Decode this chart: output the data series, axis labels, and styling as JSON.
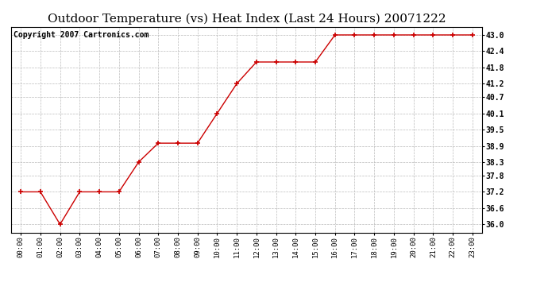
{
  "title": "Outdoor Temperature (vs) Heat Index (Last 24 Hours) 20071222",
  "copyright_text": "Copyright 2007 Cartronics.com",
  "x_labels": [
    "00:00",
    "01:00",
    "02:00",
    "03:00",
    "04:00",
    "05:00",
    "06:00",
    "07:00",
    "08:00",
    "09:00",
    "10:00",
    "11:00",
    "12:00",
    "13:00",
    "14:00",
    "15:00",
    "16:00",
    "17:00",
    "18:00",
    "19:00",
    "20:00",
    "21:00",
    "22:00",
    "23:00"
  ],
  "y_values": [
    37.2,
    37.2,
    36.0,
    37.2,
    37.2,
    37.2,
    38.3,
    39.0,
    39.0,
    39.0,
    40.1,
    41.2,
    42.0,
    42.0,
    42.0,
    42.0,
    43.0,
    43.0,
    43.0,
    43.0,
    43.0,
    43.0,
    43.0,
    43.0
  ],
  "y_ticks": [
    36.0,
    36.6,
    37.2,
    37.8,
    38.3,
    38.9,
    39.5,
    40.1,
    40.7,
    41.2,
    41.8,
    42.4,
    43.0
  ],
  "y_min": 35.7,
  "y_max": 43.3,
  "line_color": "#cc0000",
  "marker": "+",
  "marker_color": "#cc0000",
  "bg_color": "#ffffff",
  "plot_bg_color": "#ffffff",
  "grid_color": "#bbbbbb",
  "title_fontsize": 11,
  "copyright_fontsize": 7
}
